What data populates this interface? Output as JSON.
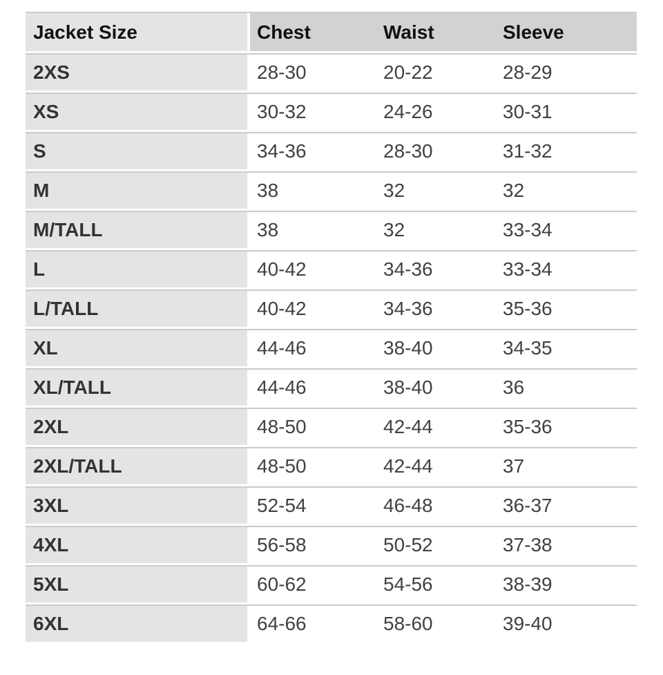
{
  "chart_data": {
    "type": "table",
    "columns": [
      "Jacket Size",
      "Chest",
      "Waist",
      "Sleeve"
    ],
    "rows": [
      {
        "size": "2XS",
        "chest": "28-30",
        "waist": "20-22",
        "sleeve": "28-29"
      },
      {
        "size": "XS",
        "chest": "30-32",
        "waist": "24-26",
        "sleeve": "30-31"
      },
      {
        "size": "S",
        "chest": "34-36",
        "waist": "28-30",
        "sleeve": "31-32"
      },
      {
        "size": "M",
        "chest": "38",
        "waist": "32",
        "sleeve": "32"
      },
      {
        "size": "M/TALL",
        "chest": "38",
        "waist": "32",
        "sleeve": "33-34"
      },
      {
        "size": "L",
        "chest": "40-42",
        "waist": "34-36",
        "sleeve": "33-34"
      },
      {
        "size": "L/TALL",
        "chest": "40-42",
        "waist": "34-36",
        "sleeve": "35-36"
      },
      {
        "size": "XL",
        "chest": "44-46",
        "waist": "38-40",
        "sleeve": "34-35"
      },
      {
        "size": "XL/TALL",
        "chest": "44-46",
        "waist": "38-40",
        "sleeve": "36"
      },
      {
        "size": "2XL",
        "chest": "48-50",
        "waist": "42-44",
        "sleeve": "35-36"
      },
      {
        "size": "2XL/TALL",
        "chest": "48-50",
        "waist": "42-44",
        "sleeve": "37"
      },
      {
        "size": "3XL",
        "chest": "52-54",
        "waist": "46-48",
        "sleeve": "36-37"
      },
      {
        "size": "4XL",
        "chest": "56-58",
        "waist": "50-52",
        "sleeve": "37-38"
      },
      {
        "size": "5XL",
        "chest": "60-62",
        "waist": "54-56",
        "sleeve": "38-39"
      },
      {
        "size": "6XL",
        "chest": "64-66",
        "waist": "58-60",
        "sleeve": "39-40"
      }
    ]
  },
  "colors": {
    "header_bg": "#d2d2d2",
    "size_col_bg": "#e4e4e4",
    "separator": "#cbcbcb",
    "header_text": "#111111",
    "size_text": "#333333",
    "value_text": "#414141"
  }
}
